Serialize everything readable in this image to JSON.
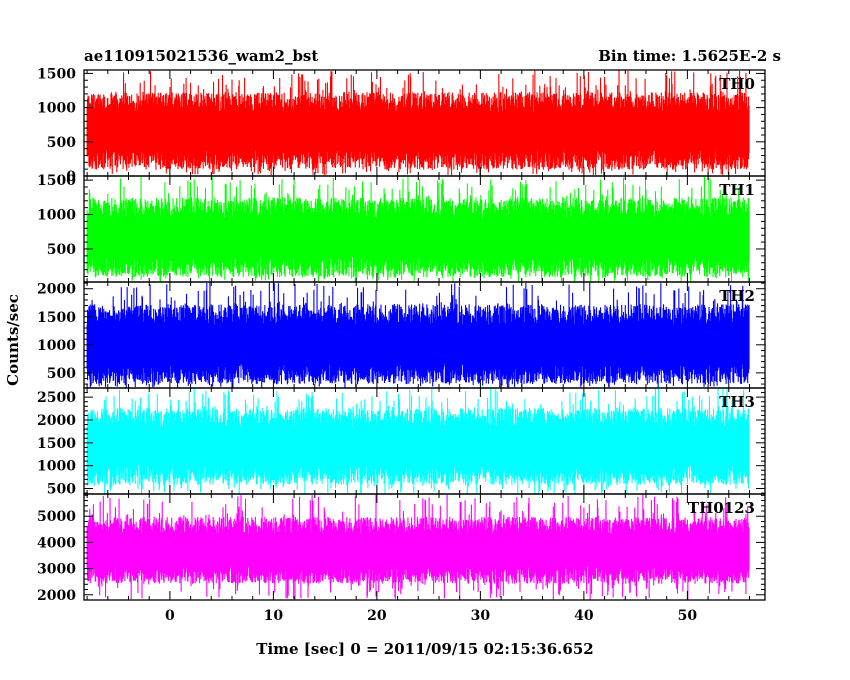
{
  "header": {
    "title": "ae110915021536_wam2_bst",
    "bin_time": "Bin time: 1.5625E-2 s"
  },
  "chart_data": {
    "type": "line",
    "title": "ae110915021536_wam2_bst",
    "subtitle": "Bin time: 1.5625E-2 s",
    "xlabel": "Time [sec] 0 = 2011/09/15 02:15:36.652",
    "ylabel": "Counts/sec",
    "xlim": [
      -8.3,
      57.5
    ],
    "x_ticks": [
      0,
      10,
      20,
      30,
      40,
      50
    ],
    "x_tick_labels": [
      "0",
      "10",
      "20",
      "30",
      "40",
      "50"
    ],
    "data_range": [
      -8,
      56
    ],
    "grid": false,
    "panels": [
      {
        "name": "TH0",
        "color": "#ff0000",
        "ylim": [
          0,
          1550
        ],
        "y_ticks": [
          0,
          500,
          1000,
          1500
        ],
        "y_tick_labels": [
          "0",
          "500",
          "1000",
          "1500"
        ],
        "mean": 640,
        "typ_low": 240,
        "typ_high": 1080,
        "min": 10,
        "max": 1550
      },
      {
        "name": "TH1",
        "color": "#00ff00",
        "ylim": [
          20,
          1560
        ],
        "y_ticks": [
          500,
          1000,
          1500
        ],
        "y_tick_labels": [
          "500",
          "1000",
          "1500"
        ],
        "mean": 650,
        "typ_low": 240,
        "typ_high": 1100,
        "min": 20,
        "max": 1560
      },
      {
        "name": "TH2",
        "color": "#0000ff",
        "ylim": [
          230,
          2120
        ],
        "y_ticks": [
          500,
          1000,
          1500,
          2000
        ],
        "y_tick_labels": [
          "500",
          "1000",
          "1500",
          "2000"
        ],
        "mean": 1000,
        "typ_low": 480,
        "typ_high": 1540,
        "min": 230,
        "max": 2120
      },
      {
        "name": "TH3",
        "color": "#00ffff",
        "ylim": [
          380,
          2700
        ],
        "y_ticks": [
          500,
          1000,
          1500,
          2000,
          2500
        ],
        "y_tick_labels": [
          "500",
          "1000",
          "1500",
          "2000",
          "2500"
        ],
        "mean": 1400,
        "typ_low": 800,
        "typ_high": 2050,
        "min": 380,
        "max": 2700
      },
      {
        "name": "TH0123",
        "color": "#ff00ff",
        "ylim": [
          1800,
          5850
        ],
        "y_ticks": [
          2000,
          3000,
          4000,
          5000
        ],
        "y_tick_labels": [
          "2000",
          "3000",
          "4000",
          "5000"
        ],
        "mean": 3650,
        "typ_low": 2750,
        "typ_high": 4650,
        "min": 1800,
        "max": 5850
      }
    ]
  }
}
